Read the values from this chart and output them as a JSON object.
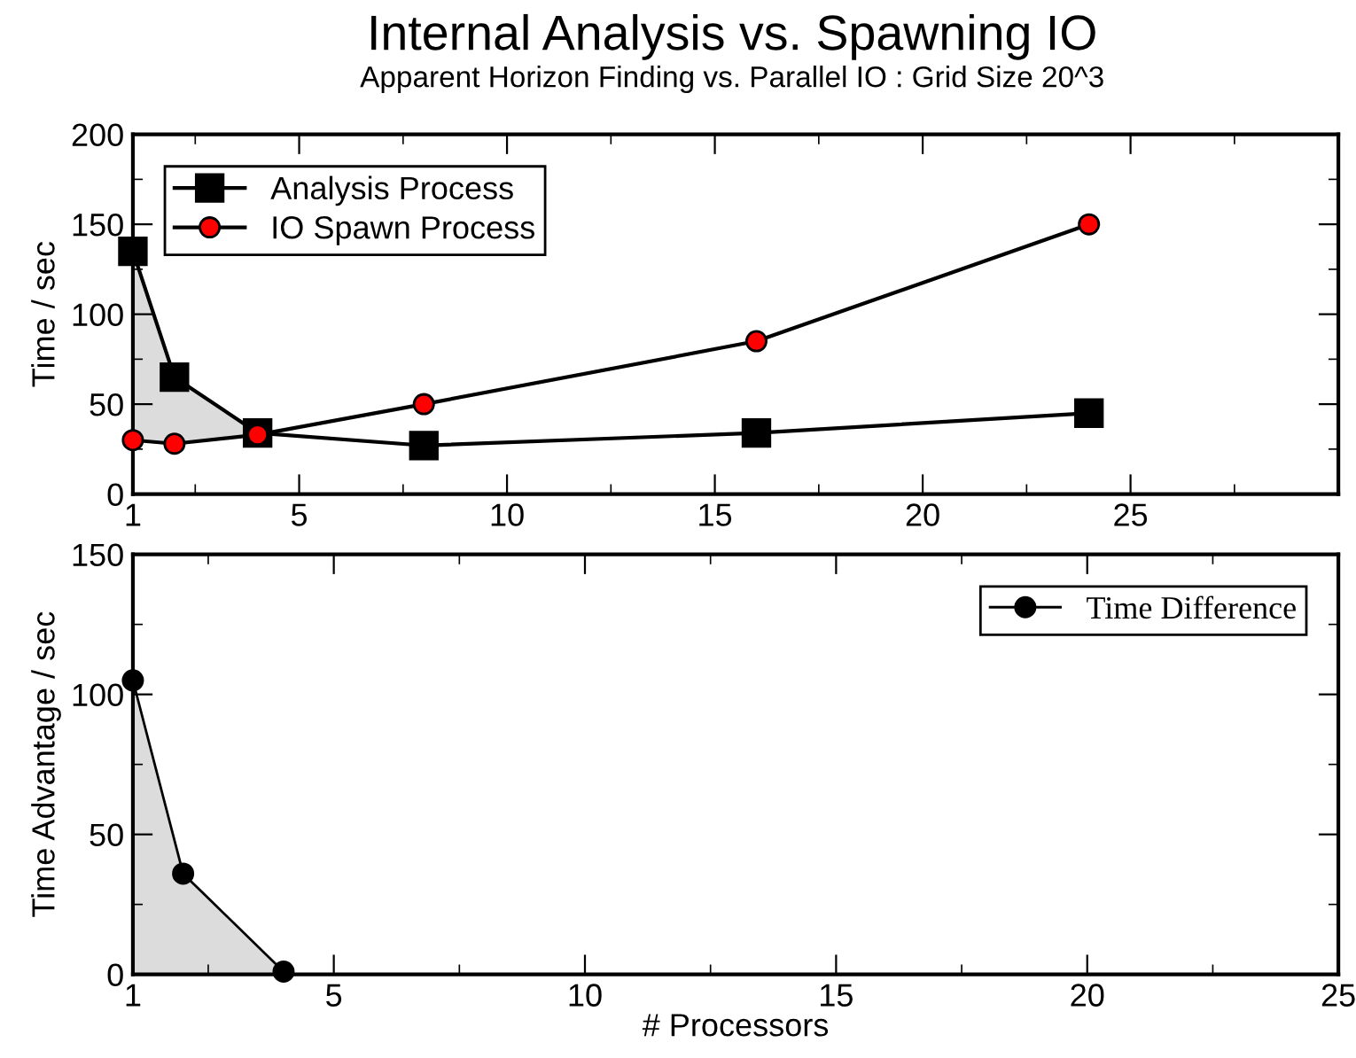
{
  "chart_data": [
    {
      "type": "line",
      "title": "Internal Analysis vs. Spawning IO",
      "subtitle": "Apparent Horizon Finding vs. Parallel IO : Grid Size 20^3",
      "ylabel": "Time / sec",
      "x": [
        1,
        2,
        4,
        8,
        16,
        24
      ],
      "series": [
        {
          "name": "Analysis Process",
          "color": "#000000",
          "marker": "square",
          "values": [
            135,
            65,
            34,
            27,
            34,
            45
          ]
        },
        {
          "name": "IO Spawn Process",
          "color": "#ff0000",
          "marker": "circle",
          "values": [
            30,
            28,
            33,
            50,
            85,
            150
          ]
        }
      ],
      "xlim": [
        1,
        30
      ],
      "xticks": [
        1,
        {
          "value": 2.5,
          "label": null
        },
        5,
        {
          "value": 7.5,
          "label": null
        },
        10,
        {
          "value": 12.5,
          "label": null
        },
        15,
        {
          "value": 17.5,
          "label": null
        },
        20,
        {
          "value": 22.5,
          "label": null
        },
        25,
        {
          "value": 27.5,
          "label": null
        }
      ],
      "ylim": [
        0,
        200
      ],
      "yticks": [
        0,
        {
          "value": 25,
          "label": null
        },
        50,
        {
          "value": 75,
          "label": null
        },
        100,
        {
          "value": 125,
          "label": null
        },
        150,
        {
          "value": 175,
          "label": null
        },
        200
      ],
      "grid": false,
      "legend": "top left",
      "line_style": "solid"
    },
    {
      "type": "area",
      "xlabel": "# Processors",
      "ylabel": "Time Advantage / sec",
      "x": [
        1,
        2,
        4
      ],
      "series": [
        {
          "name": "Time Difference",
          "color": "#000000",
          "marker": "circle",
          "values": [
            105,
            36,
            1
          ]
        }
      ],
      "xlim": [
        1,
        25
      ],
      "xticks": [
        1,
        {
          "value": 2.5,
          "label": null
        },
        5,
        {
          "value": 7.5,
          "label": null
        },
        10,
        {
          "value": 12.5,
          "label": null
        },
        15,
        {
          "value": 17.5,
          "label": null
        },
        20,
        {
          "value": 22.5,
          "label": null
        },
        25
      ],
      "ylim": [
        0,
        150
      ],
      "yticks": [
        0,
        {
          "value": 25,
          "label": null
        },
        50,
        {
          "value": 75,
          "label": null
        },
        100,
        {
          "value": 125,
          "label": null
        },
        150
      ],
      "grid": false,
      "legend": "top right",
      "line_style": "solid"
    }
  ]
}
